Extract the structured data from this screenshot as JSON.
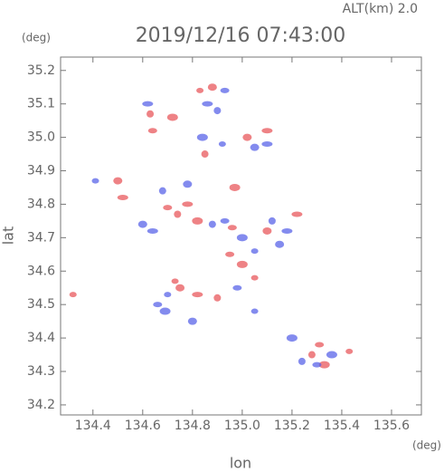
{
  "chart_data": {
    "type": "scatter",
    "title": "2019/12/16 07:43:00",
    "subtitle": "ALT(km) 2.0",
    "x_label": "lon",
    "y_label": "lat",
    "x_unit": "(deg)",
    "y_unit": "(deg)",
    "xlim": [
      134.27,
      135.72
    ],
    "ylim": [
      34.17,
      35.24
    ],
    "xticks": [
      134.4,
      134.6,
      134.8,
      {
        "value": 135,
        "label": "135.0"
      },
      135.2,
      135.4,
      135.6
    ],
    "yticks": [
      34.2,
      34.3,
      34.4,
      34.5,
      34.6,
      34.7,
      34.8,
      34.9,
      {
        "value": 35,
        "label": "35.0"
      },
      35.1,
      35.2
    ],
    "series": [
      {
        "color": "#e8585c",
        "x": [
          134.32,
          134.5,
          134.52,
          134.63,
          134.64,
          134.72,
          134.83,
          134.88,
          134.78,
          134.74,
          134.7,
          134.82,
          134.73,
          134.75,
          134.82,
          134.9,
          134.95,
          135.0,
          135.05,
          135.1,
          135.22,
          135.28,
          135.31,
          135.33,
          135.43,
          135.02,
          135.1,
          134.85,
          134.96,
          134.97
        ],
        "y": [
          34.53,
          34.87,
          34.82,
          35.07,
          35.02,
          35.06,
          35.14,
          35.15,
          34.8,
          34.77,
          34.79,
          34.75,
          34.57,
          34.55,
          34.53,
          34.52,
          34.65,
          34.62,
          34.58,
          34.72,
          34.77,
          34.35,
          34.38,
          34.32,
          34.36,
          35.0,
          35.02,
          34.95,
          34.73,
          34.85
        ]
      },
      {
        "color": "#5a64e8",
        "x": [
          134.41,
          134.6,
          134.64,
          134.68,
          134.66,
          134.69,
          134.7,
          134.8,
          134.86,
          134.9,
          134.93,
          134.84,
          134.92,
          135.05,
          135.1,
          134.88,
          134.93,
          135.0,
          135.05,
          135.15,
          135.18,
          135.24,
          135.3,
          135.36,
          135.05,
          134.78,
          134.62,
          135.12,
          134.98,
          135.2
        ],
        "y": [
          34.87,
          34.74,
          34.72,
          34.84,
          34.5,
          34.48,
          34.53,
          34.45,
          35.1,
          35.08,
          35.14,
          35.0,
          34.98,
          34.97,
          34.98,
          34.74,
          34.75,
          34.7,
          34.66,
          34.68,
          34.72,
          34.33,
          34.32,
          34.35,
          34.48,
          34.86,
          35.1,
          34.75,
          34.55,
          34.4
        ]
      }
    ]
  }
}
